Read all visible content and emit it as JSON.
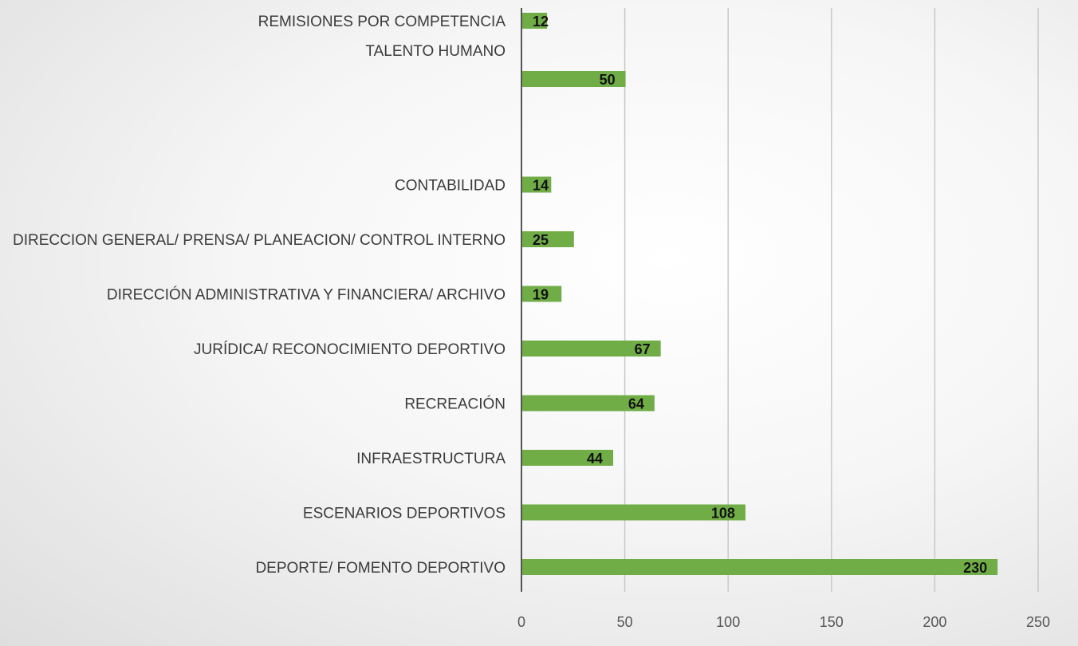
{
  "chart_data": {
    "type": "bar",
    "orientation": "horizontal",
    "categories": [
      "REMISIONES POR COMPETENCIA",
      "TALENTO HUMANO",
      "",
      "CONTABILIDAD",
      "DIRECCION GENERAL/ PRENSA/ PLANEACION/ CONTROL INTERNO",
      "DIRECCIÓN ADMINISTRATIVA Y FINANCIERA/ ARCHIVO",
      "JURÍDICA/ RECONOCIMIENTO DEPORTIVO",
      "RECREACIÓN",
      "INFRAESTRUCTURA",
      "ESCENARIOS DEPORTIVOS",
      "DEPORTE/ FOMENTO DEPORTIVO"
    ],
    "values": [
      12,
      null,
      50,
      14,
      25,
      19,
      67,
      64,
      44,
      108,
      230
    ],
    "value_labels": [
      "12",
      "",
      "50",
      "14",
      "25",
      "19",
      "67",
      "64",
      "44",
      "108",
      "230"
    ],
    "xticks": [
      "0",
      "50",
      "100",
      "150",
      "200",
      "250"
    ],
    "xlim": [
      0,
      250
    ],
    "grid": "vertical",
    "colors": {
      "bar": "#70ad47",
      "grid": "#c8c8c8",
      "axis": "#555555"
    }
  }
}
